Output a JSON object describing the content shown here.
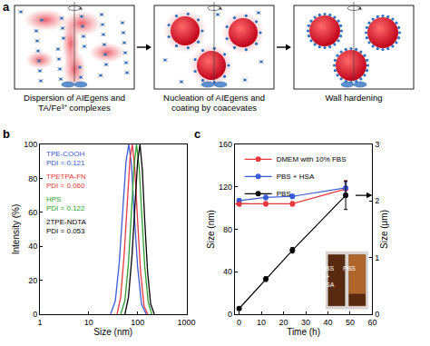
{
  "diagram": {
    "panel_label": "a",
    "steps": [
      "Dispersion of AIEgens and TA/Fe³⁺ complexes",
      "Nucleation of AIEgens and coating by coacevates",
      "Wall hardening"
    ]
  },
  "chart_data": [
    {
      "panel_label": "b",
      "type": "line",
      "x_label": "Size (nm)",
      "y_label": "Intensity (%)",
      "log": "x",
      "xlim": [
        1,
        1000
      ],
      "xticks": [
        1,
        10,
        100,
        1000
      ],
      "ylim": [
        0,
        100
      ],
      "yticks": [
        0,
        20,
        40,
        60,
        80,
        100
      ],
      "legend": "upper left",
      "series": [
        {
          "name": "TPE-COOH",
          "note": "PDI = 0.121",
          "color": "#3b5bd6",
          "x": [
            28,
            35,
            42,
            50,
            58,
            66,
            75,
            85,
            100,
            120,
            150
          ],
          "values": [
            0,
            8,
            30,
            62,
            90,
            100,
            88,
            60,
            28,
            6,
            0
          ]
        },
        {
          "name": "TPETPA-FN",
          "note": "PDI = 0.060",
          "color": "#e8383d",
          "x": [
            38,
            45,
            53,
            62,
            70,
            78,
            88,
            100,
            115,
            135,
            160
          ],
          "values": [
            0,
            10,
            35,
            68,
            92,
            100,
            85,
            55,
            25,
            5,
            0
          ]
        },
        {
          "name": "HPS",
          "note": "PDI = 0.122",
          "color": "#2ca02c",
          "x": [
            45,
            55,
            65,
            75,
            85,
            95,
            108,
            122,
            140,
            165,
            195
          ],
          "values": [
            0,
            8,
            30,
            60,
            88,
            100,
            86,
            58,
            28,
            7,
            0
          ]
        },
        {
          "name": "2TPE-NDTA",
          "note": "PDI = 0.053",
          "color": "#000000",
          "x": [
            55,
            65,
            77,
            88,
            100,
            112,
            125,
            140,
            160,
            185,
            220
          ],
          "values": [
            0,
            10,
            35,
            65,
            90,
            100,
            85,
            55,
            25,
            6,
            0
          ]
        }
      ]
    },
    {
      "panel_label": "c",
      "type": "line",
      "x_label": "Time (h)",
      "y_label": "Size (nm)",
      "y2_label": "Size (μm)",
      "x": [
        0,
        12,
        24,
        48
      ],
      "xlim": [
        -2,
        60
      ],
      "xticks": [
        0,
        10,
        20,
        30,
        40,
        50,
        60
      ],
      "ylim": [
        0,
        160
      ],
      "yticks": [
        0,
        40,
        80,
        120,
        160
      ],
      "y2lim": [
        0,
        3
      ],
      "y2ticks": [
        0,
        1,
        2,
        3
      ],
      "legend": "upper left",
      "inset_labels": [
        "PBS + HSA",
        "PBS"
      ],
      "series": [
        {
          "name": "DMEM with 10% FBS",
          "color": "#e8383d",
          "marker": "circle",
          "values": [
            104,
            104,
            104,
            118
          ],
          "errors": [
            2,
            2,
            2,
            8
          ]
        },
        {
          "name": "PBS + HSA",
          "color": "#3b5bd6",
          "marker": "circle",
          "values": [
            107,
            110,
            111,
            119
          ],
          "errors": [
            2,
            2,
            2,
            5
          ]
        },
        {
          "name": "PBS",
          "color": "#000000",
          "marker": "circle",
          "axis": "y2",
          "values": [
            0.1,
            0.62,
            1.13,
            2.1
          ],
          "errors": [
            0.02,
            0.04,
            0.05,
            0.25
          ]
        }
      ]
    }
  ]
}
